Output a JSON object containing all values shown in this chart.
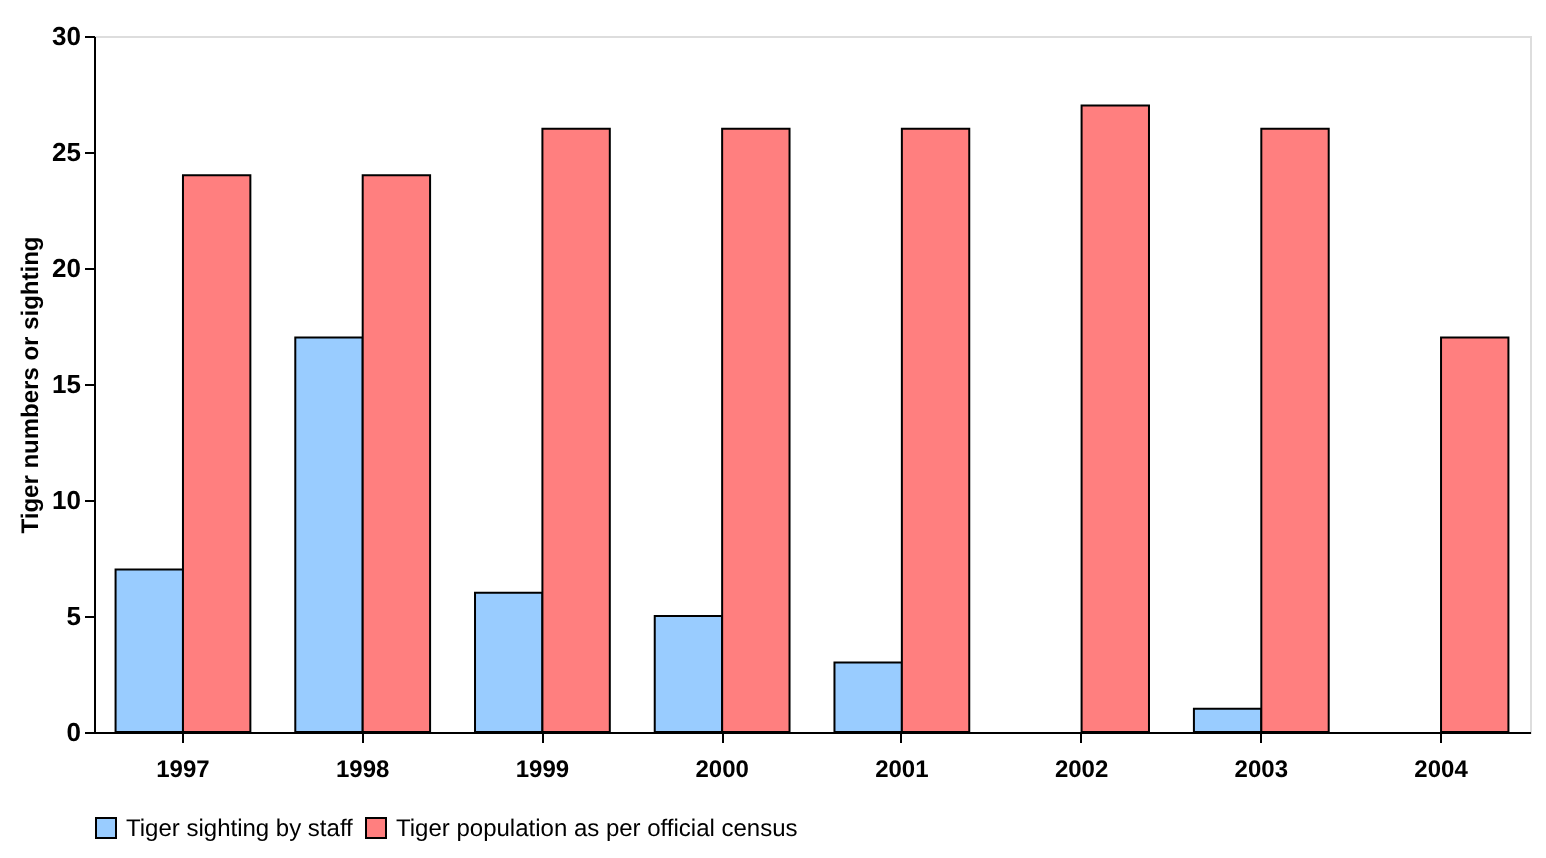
{
  "chart_data": {
    "type": "bar",
    "ylabel": "Tiger numbers or sighting",
    "categories": [
      "1997",
      "1998",
      "1999",
      "2000",
      "2001",
      "2002",
      "2003",
      "2004"
    ],
    "series": [
      {
        "name": "Tiger sighting by staff",
        "color": "#99ccff",
        "values": [
          7,
          17,
          6,
          5,
          3,
          null,
          1,
          null
        ]
      },
      {
        "name": "Tiger population as per official census",
        "color": "#ff7f7f",
        "values": [
          24,
          24,
          26,
          26,
          26,
          27,
          26,
          17
        ]
      }
    ],
    "ylim": [
      0,
      30
    ],
    "yticks": [
      0,
      5,
      10,
      15,
      20,
      25,
      30
    ],
    "grid": false,
    "legend": "bottom"
  }
}
